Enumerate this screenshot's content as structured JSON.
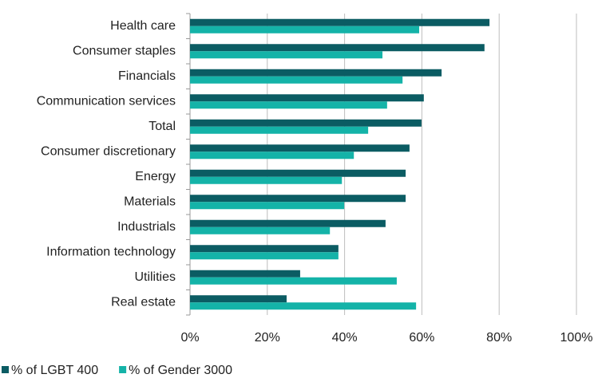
{
  "chart_data": {
    "type": "barh",
    "categories": [
      "Health care",
      "Consumer staples",
      "Financials",
      "Communication services",
      "Total",
      "Consumer discretionary",
      "Energy",
      "Materials",
      "Industrials",
      "Information technology",
      "Utilities",
      "Real estate"
    ],
    "series": [
      {
        "name": "% of LGBT 400",
        "color": "#0b5c63",
        "values": [
          77.5,
          76.2,
          65.1,
          60.5,
          59.9,
          56.8,
          55.8,
          55.8,
          50.6,
          38.4,
          28.5,
          25.0
        ]
      },
      {
        "name": "% of Gender 3000",
        "color": "#14b3a8",
        "values": [
          59.3,
          49.8,
          55.0,
          51.0,
          46.1,
          42.4,
          39.3,
          39.9,
          36.2,
          38.4,
          53.5,
          58.5
        ]
      }
    ],
    "xlim": [
      0,
      100
    ],
    "xticks": [
      {
        "value": 0,
        "label": "0%"
      },
      {
        "value": 20,
        "label": "20%"
      },
      {
        "value": 40,
        "label": "40%"
      },
      {
        "value": 60,
        "label": "60%"
      },
      {
        "value": 80,
        "label": "80%"
      },
      {
        "value": 100,
        "label": "100%"
      }
    ],
    "grid": true,
    "legend": "bottom-left"
  }
}
